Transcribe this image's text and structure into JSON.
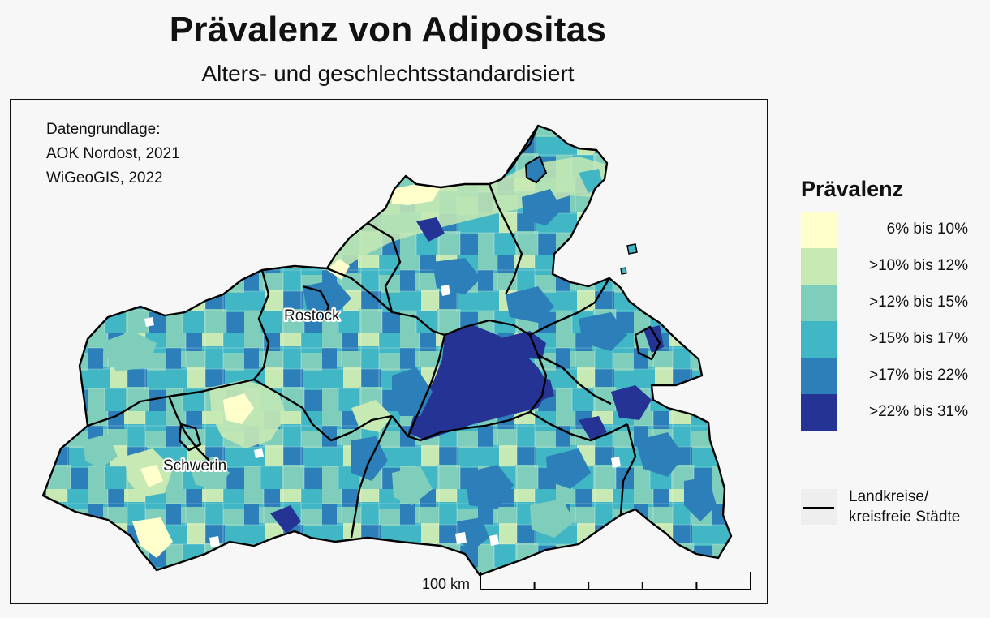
{
  "title": "Prävalenz von Adipositas",
  "subtitle": "Alters- und geschlechtsstandardisiert",
  "source": {
    "heading": "Datengrundlage:",
    "lines": [
      "AOK Nordost, 2021",
      "WiGeoGIS, 2022"
    ]
  },
  "cities": {
    "rostock": "Rostock",
    "schwerin": "Schwerin"
  },
  "scale_bar": {
    "label": "100 km",
    "tick_count": 6
  },
  "legend": {
    "title": "Prävalenz",
    "classes": [
      {
        "label": "6% bis 10%",
        "color": "#ffffcc"
      },
      {
        "label": ">10% bis 12%",
        "color": "#c7e9b4"
      },
      {
        "label": ">12% bis 15%",
        "color": "#7fcdbb"
      },
      {
        "label": ">15% bis 17%",
        "color": "#41b6c4"
      },
      {
        "label": ">17% bis 22%",
        "color": "#2c7fb8"
      },
      {
        "label": ">22% bis 31%",
        "color": "#253494"
      }
    ],
    "boundary_label_line1": "Landkreise/",
    "boundary_label_line2": "kreisfreie Städte"
  }
}
